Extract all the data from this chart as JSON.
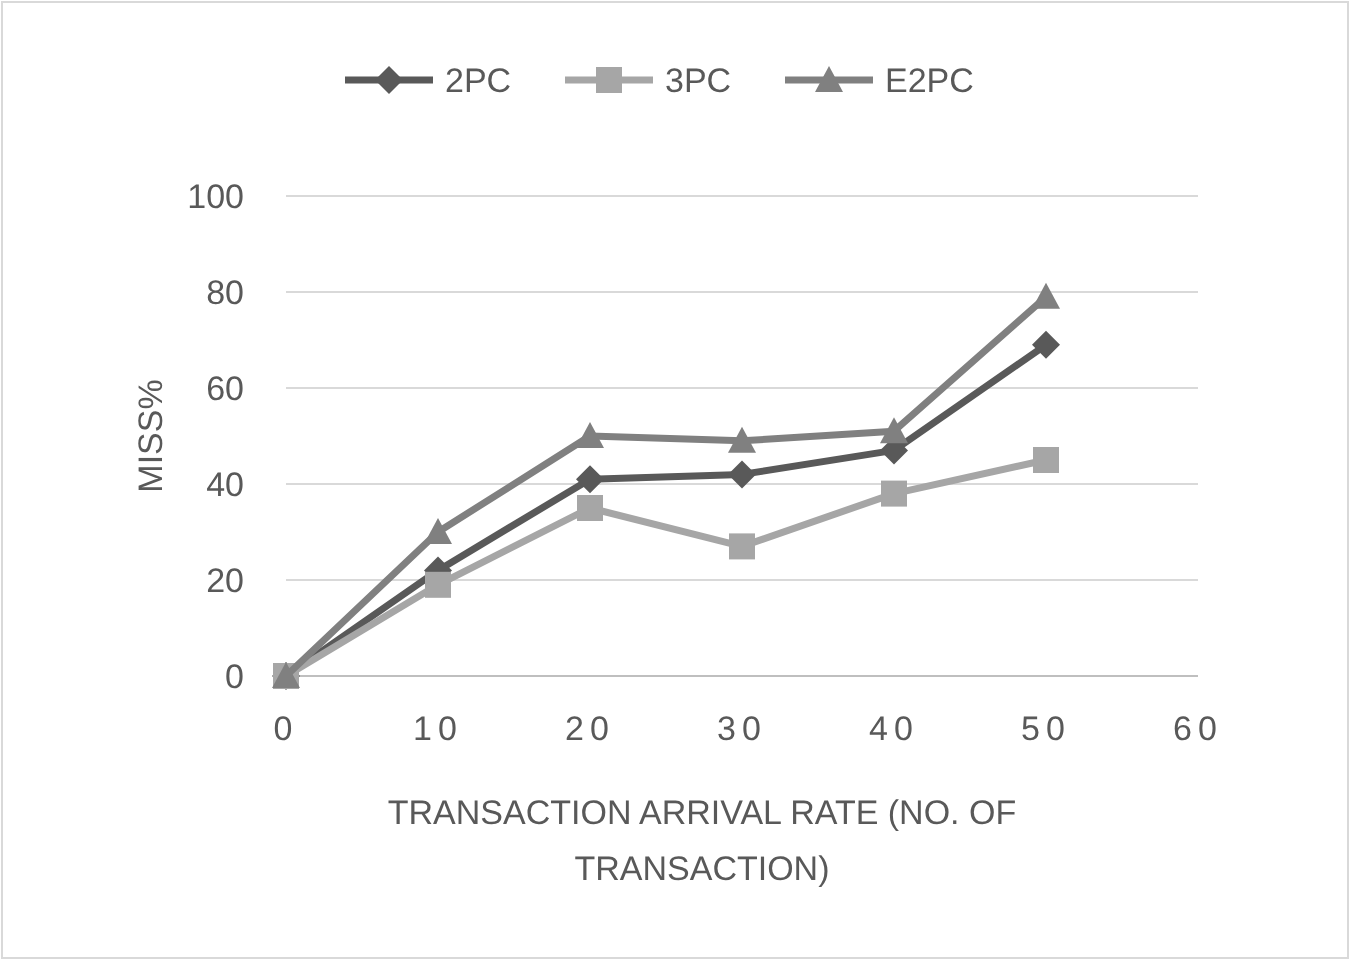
{
  "chart_data": {
    "type": "line",
    "xlabel": "TRANSACTION ARRIVAL RATE (NO. OF TRANSACTION)",
    "ylabel": "MISS%",
    "x": [
      0,
      10,
      20,
      30,
      40,
      50
    ],
    "series": [
      {
        "name": "2PC",
        "color": "#595959",
        "marker": "diamond",
        "values": [
          0,
          22,
          41,
          42,
          47,
          69
        ]
      },
      {
        "name": "3PC",
        "color": "#a6a6a6",
        "marker": "square",
        "values": [
          0,
          19,
          35,
          27,
          38,
          45
        ]
      },
      {
        "name": "E2PC",
        "color": "#808080",
        "marker": "triangle",
        "values": [
          0,
          30,
          50,
          49,
          51,
          79
        ]
      }
    ],
    "xlim": [
      0,
      60
    ],
    "xticks": [
      0,
      10,
      20,
      30,
      40,
      50,
      60
    ],
    "ylim": [
      0,
      100
    ],
    "yticks": [
      0,
      20,
      40,
      60,
      80,
      100
    ],
    "grid": "y",
    "legend": "top"
  }
}
